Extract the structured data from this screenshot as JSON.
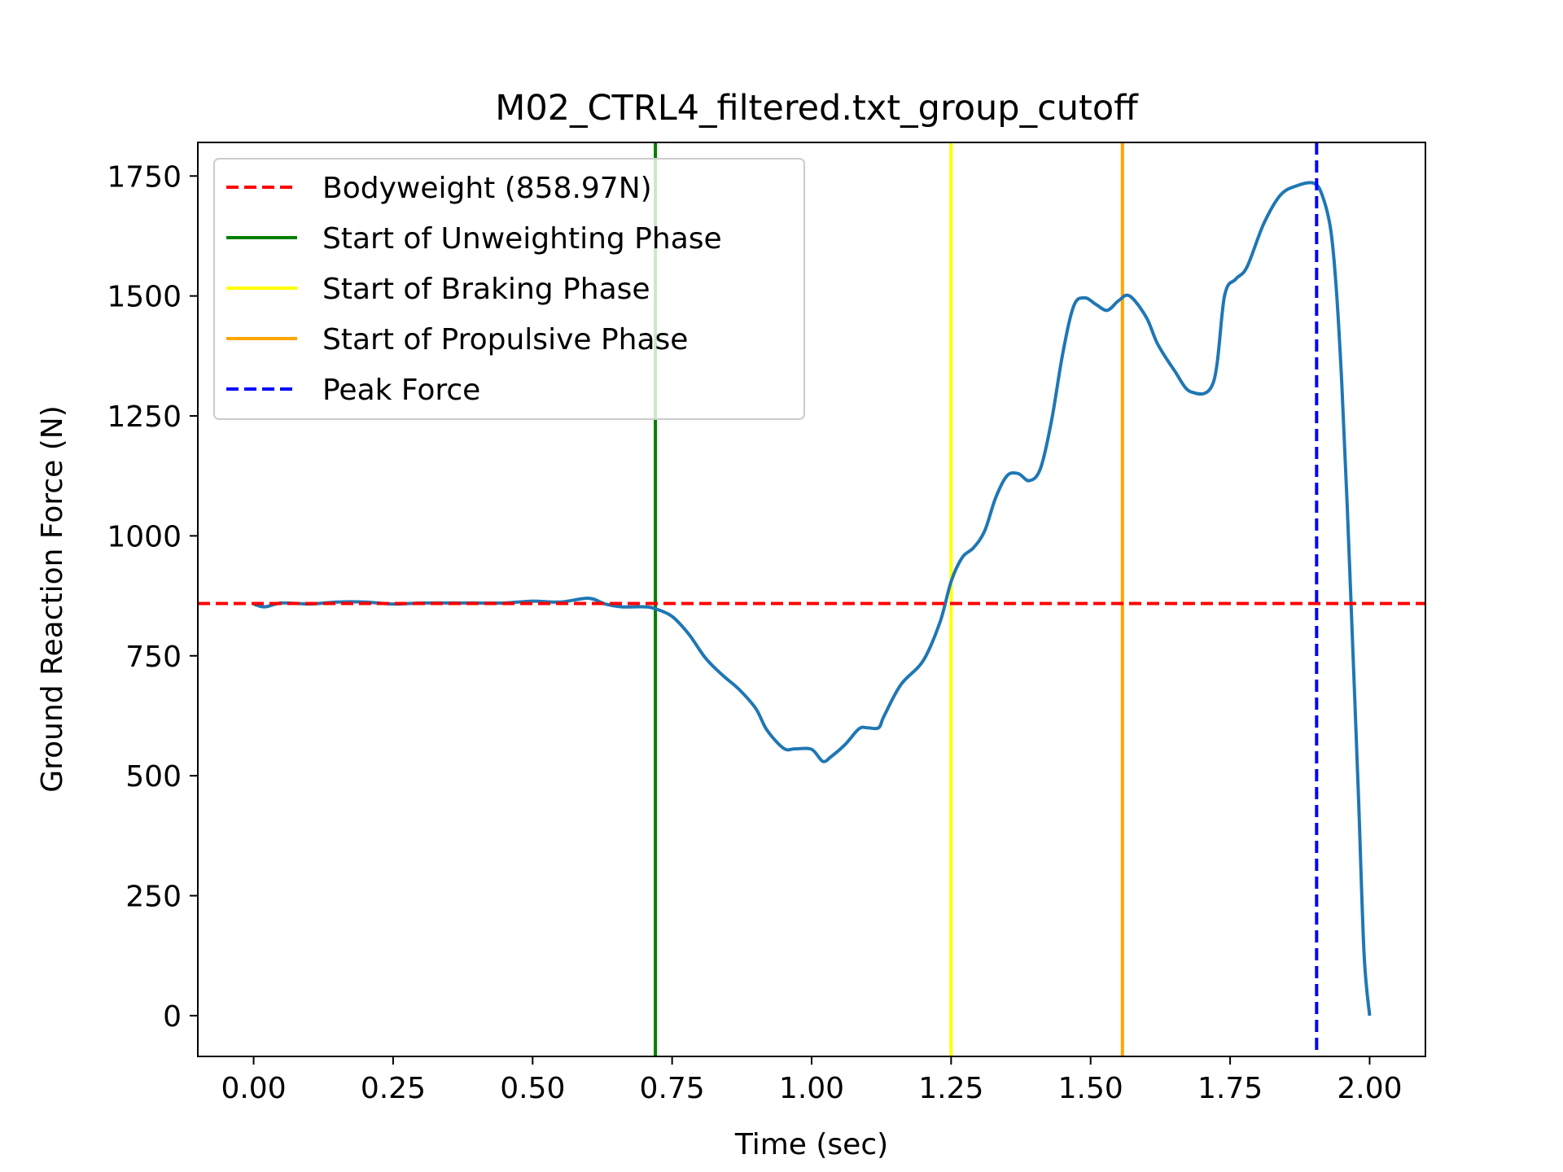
{
  "chart_data": {
    "type": "line",
    "title": "M02_CTRL4_filtered.txt_group_cutoff",
    "xlabel": "Time (sec)",
    "ylabel": "Ground Reaction Force (N)",
    "xlim": [
      -0.1,
      2.1
    ],
    "ylim": [
      -85,
      1820
    ],
    "xticks": [
      0.0,
      0.25,
      0.5,
      0.75,
      1.0,
      1.25,
      1.5,
      1.75,
      2.0
    ],
    "xtick_labels": [
      "0.00",
      "0.25",
      "0.50",
      "0.75",
      "1.00",
      "1.25",
      "1.50",
      "1.75",
      "2.00"
    ],
    "yticks": [
      0,
      250,
      500,
      750,
      1000,
      1250,
      1500,
      1750
    ],
    "ytick_labels": [
      "0",
      "250",
      "500",
      "750",
      "1000",
      "1250",
      "1500",
      "1750"
    ],
    "grid": false,
    "legend_position": "upper-left",
    "series": [
      {
        "color": "#1f77b4",
        "x": [
          0.0,
          0.02,
          0.05,
          0.1,
          0.15,
          0.2,
          0.25,
          0.3,
          0.35,
          0.4,
          0.45,
          0.5,
          0.55,
          0.6,
          0.63,
          0.66,
          0.7,
          0.72,
          0.75,
          0.78,
          0.81,
          0.84,
          0.87,
          0.9,
          0.92,
          0.95,
          0.97,
          1.0,
          1.02,
          1.035,
          1.06,
          1.085,
          1.1,
          1.12,
          1.13,
          1.16,
          1.2,
          1.23,
          1.25,
          1.27,
          1.29,
          1.31,
          1.33,
          1.35,
          1.37,
          1.39,
          1.41,
          1.43,
          1.45,
          1.47,
          1.49,
          1.51,
          1.53,
          1.55,
          1.57,
          1.6,
          1.62,
          1.65,
          1.68,
          1.72,
          1.74,
          1.76,
          1.78,
          1.81,
          1.84,
          1.87,
          1.9,
          1.915,
          1.93,
          1.94,
          1.95,
          1.96,
          1.97,
          1.98,
          1.99,
          2.0
        ],
        "y": [
          858,
          852,
          860,
          858,
          862,
          862,
          858,
          860,
          860,
          860,
          860,
          864,
          862,
          870,
          858,
          852,
          852,
          848,
          832,
          795,
          745,
          710,
          680,
          640,
          595,
          557,
          556,
          555,
          530,
          540,
          565,
          598,
          600,
          600,
          625,
          690,
          740,
          820,
          905,
          955,
          975,
          1010,
          1080,
          1125,
          1130,
          1115,
          1140,
          1240,
          1380,
          1480,
          1496,
          1482,
          1470,
          1490,
          1500,
          1455,
          1400,
          1345,
          1300,
          1320,
          1500,
          1535,
          1560,
          1650,
          1710,
          1730,
          1735,
          1710,
          1640,
          1520,
          1320,
          1060,
          760,
          460,
          130,
          0
        ]
      }
    ],
    "reference_lines": [
      {
        "orientation": "horizontal",
        "value": 858.97,
        "color": "#ff0000",
        "dash": true,
        "label": "Bodyweight (858.97N)"
      },
      {
        "orientation": "vertical",
        "value": 0.72,
        "color": "#008000",
        "dash": false,
        "label": "Start of Unweighting Phase"
      },
      {
        "orientation": "vertical",
        "value": 1.25,
        "color": "#ffff00",
        "dash": false,
        "label": "Start of Braking Phase"
      },
      {
        "orientation": "vertical",
        "value": 1.557,
        "color": "#ffa500",
        "dash": false,
        "label": "Start of Propulsive Phase"
      },
      {
        "orientation": "vertical",
        "value": 1.905,
        "color": "#0000ff",
        "dash": true,
        "label": "Peak Force"
      }
    ]
  }
}
